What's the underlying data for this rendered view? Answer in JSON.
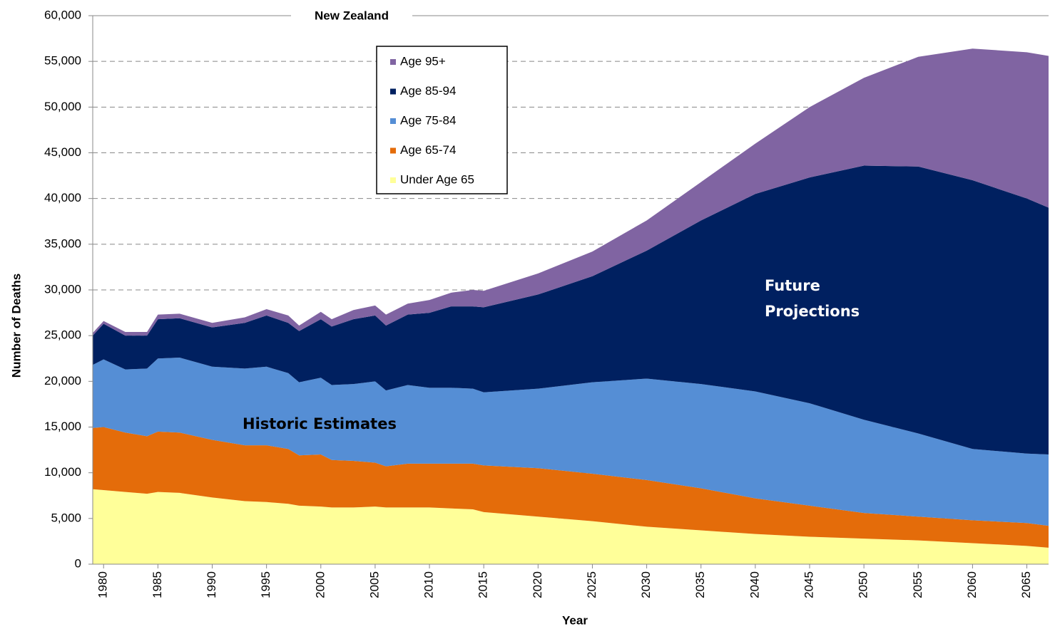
{
  "chart_data": {
    "type": "stacked_area",
    "title": "New Zealand",
    "x_label": "Year",
    "y_label": "Number of Deaths",
    "annotations": [
      "Historic Estimates",
      "Future Projections"
    ],
    "x": [
      1979,
      1980,
      1982,
      1984,
      1985,
      1987,
      1990,
      1993,
      1995,
      1997,
      1998,
      2000,
      2001,
      2003,
      2005,
      2006,
      2008,
      2010,
      2012,
      2014,
      2015,
      2020,
      2025,
      2030,
      2035,
      2040,
      2045,
      2050,
      2055,
      2060,
      2065,
      2067
    ],
    "series": [
      {
        "name": "Under Age 65",
        "color": "#ffff99",
        "values": [
          8200,
          8100,
          7900,
          7700,
          7900,
          7800,
          7300,
          6900,
          6800,
          6600,
          6400,
          6300,
          6200,
          6200,
          6300,
          6200,
          6200,
          6200,
          6100,
          6000,
          5700,
          5200,
          4700,
          4100,
          3700,
          3300,
          3000,
          2800,
          2600,
          2300,
          2000,
          1800
        ]
      },
      {
        "name": "Age 65-74",
        "color": "#e46c0a",
        "values": [
          6700,
          6900,
          6500,
          6300,
          6600,
          6600,
          6300,
          6100,
          6200,
          6000,
          5500,
          5700,
          5200,
          5100,
          4800,
          4500,
          4800,
          4800,
          4900,
          5000,
          5100,
          5300,
          5200,
          5100,
          4600,
          3900,
          3400,
          2800,
          2600,
          2500,
          2500,
          2400
        ]
      },
      {
        "name": "Age 75-84",
        "color": "#558ed5",
        "values": [
          6900,
          7400,
          6900,
          7400,
          8000,
          8200,
          8000,
          8400,
          8600,
          8300,
          8000,
          8400,
          8200,
          8400,
          8900,
          8300,
          8600,
          8300,
          8300,
          8200,
          8000,
          8700,
          10000,
          11100,
          11400,
          11700,
          11200,
          10200,
          9100,
          7800,
          7600,
          7800
        ]
      },
      {
        "name": "Age 85-94",
        "color": "#002060",
        "values": [
          3200,
          3900,
          3700,
          3600,
          4300,
          4300,
          4300,
          5000,
          5600,
          5500,
          5600,
          6400,
          6400,
          7100,
          7200,
          7100,
          7700,
          8200,
          8900,
          9000,
          9300,
          10300,
          11600,
          14000,
          17900,
          21600,
          24700,
          27800,
          29200,
          29400,
          27900,
          27000
        ]
      },
      {
        "name": "Age 95+",
        "color": "#8064a2",
        "values": [
          300,
          300,
          400,
          400,
          500,
          500,
          500,
          600,
          700,
          800,
          600,
          800,
          800,
          1000,
          1100,
          1200,
          1200,
          1400,
          1500,
          1800,
          1800,
          2300,
          2700,
          3300,
          4200,
          5500,
          7700,
          9600,
          12000,
          14400,
          16000,
          16600
        ]
      }
    ],
    "xlim": [
      1979,
      2067
    ],
    "xticks": [
      1980,
      1985,
      1990,
      1995,
      2000,
      2005,
      2010,
      2015,
      2020,
      2025,
      2030,
      2035,
      2040,
      2045,
      2050,
      2055,
      2060,
      2065
    ],
    "ylim": [
      0,
      60000
    ],
    "yticks": [
      0,
      {
        "value": 5000,
        "label": "5,000"
      },
      {
        "value": 10000,
        "label": "10,000"
      },
      {
        "value": 15000,
        "label": "15,000"
      },
      {
        "value": 20000,
        "label": "20,000"
      },
      {
        "value": 25000,
        "label": "25,000"
      },
      {
        "value": 30000,
        "label": "30,000"
      },
      {
        "value": 35000,
        "label": "35,000"
      },
      {
        "value": 40000,
        "label": "40,000"
      },
      {
        "value": 45000,
        "label": "45,000"
      },
      {
        "value": 50000,
        "label": "50,000"
      },
      {
        "value": 55000,
        "label": "55,000"
      },
      {
        "value": 60000,
        "label": "60,000"
      }
    ],
    "grid": true
  }
}
